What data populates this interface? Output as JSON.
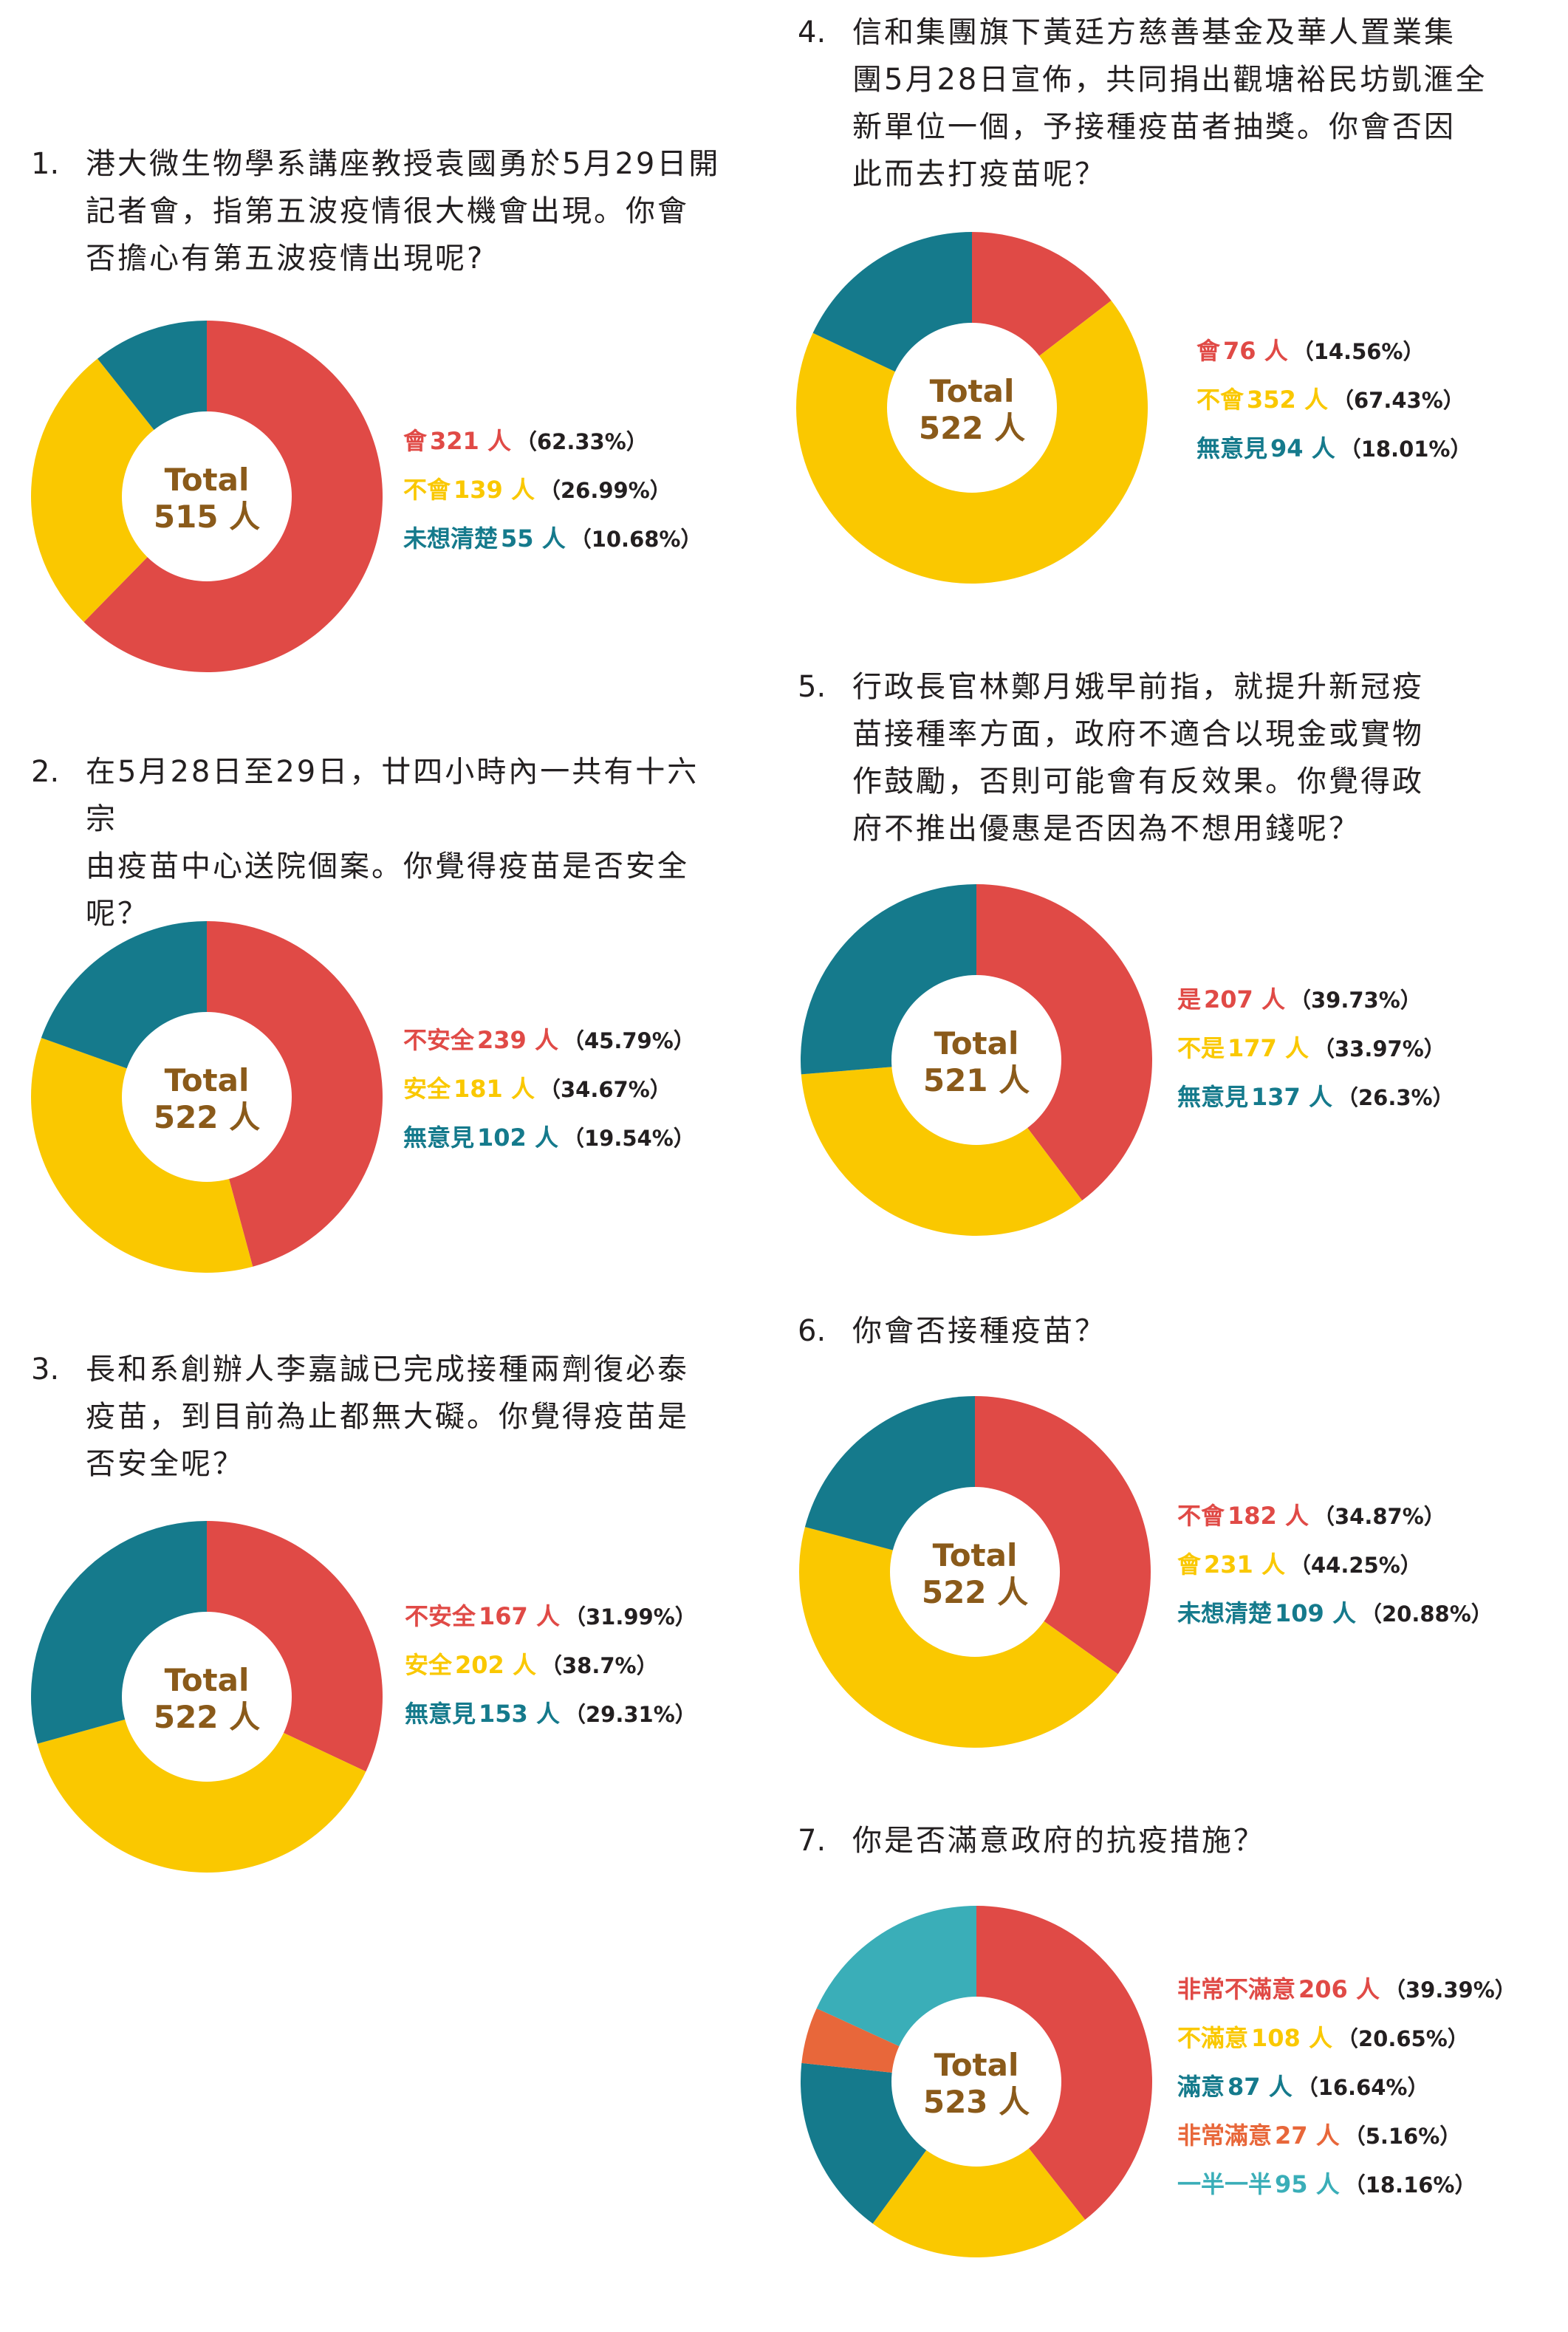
{
  "colors": {
    "red": "#e04a46",
    "yellow": "#fac800",
    "teal": "#157a8c",
    "orange": "#e8673a",
    "cyan": "#3aaeb8",
    "center_text": "#8a5a1a"
  },
  "chart_data": [
    {
      "type": "pie",
      "number": "1.",
      "question": "港大微生物學系講座教授袁國勇於5月29日開記者會，指第五波疫情很大機會出現。你會否擔心有第五波疫情出現呢?",
      "question_lines": [
        "港大微生物學系講座教授袁國勇於5月29日開",
        "記者會，指第五波疫情很大機會出現。你會",
        "否擔心有第五波疫情出現呢?"
      ],
      "center_label": "Total",
      "center_value": "515 人",
      "slices": [
        {
          "label": "會",
          "count": "321 人",
          "value": 62.33,
          "pct": "（62.33%）",
          "color": "#e04a46"
        },
        {
          "label": "不會",
          "count": "139 人",
          "value": 26.99,
          "pct": "（26.99%）",
          "color": "#fac800"
        },
        {
          "label": "未想清楚",
          "count": "55 人",
          "value": 10.68,
          "pct": "（10.68%）",
          "color": "#157a8c"
        }
      ]
    },
    {
      "type": "pie",
      "number": "2.",
      "question": "在5月28日至29日，廿四小時內一共有十六宗由疫苗中心送院個案。你覺得疫苗是否安全呢？",
      "question_lines": [
        "在5月28日至29日，廿四小時內一共有十六宗",
        "由疫苗中心送院個案。你覺得疫苗是否安全",
        "呢？"
      ],
      "center_label": "Total",
      "center_value": "522 人",
      "slices": [
        {
          "label": "不安全",
          "count": "239 人",
          "value": 45.79,
          "pct": "（45.79%）",
          "color": "#e04a46"
        },
        {
          "label": "安全",
          "count": "181 人",
          "value": 34.67,
          "pct": "（34.67%）",
          "color": "#fac800"
        },
        {
          "label": "無意見",
          "count": "102 人",
          "value": 19.54,
          "pct": "（19.54%）",
          "color": "#157a8c"
        }
      ]
    },
    {
      "type": "pie",
      "number": "3.",
      "question": "長和系創辦人李嘉誠已完成接種兩劑復必泰疫苗，到目前為止都無大礙。你覺得疫苗是否安全呢？",
      "question_lines": [
        "長和系創辦人李嘉誠已完成接種兩劑復必泰",
        "疫苗，到目前為止都無大礙。你覺得疫苗是",
        "否安全呢？"
      ],
      "center_label": "Total",
      "center_value": "522 人",
      "slices": [
        {
          "label": "不安全",
          "count": "167 人",
          "value": 31.99,
          "pct": "（31.99%）",
          "color": "#e04a46"
        },
        {
          "label": "安全",
          "count": "202 人",
          "value": 38.7,
          "pct": "（38.7%）",
          "color": "#fac800"
        },
        {
          "label": "無意見",
          "count": "153 人",
          "value": 29.31,
          "pct": "（29.31%）",
          "color": "#157a8c"
        }
      ]
    },
    {
      "type": "pie",
      "number": "4.",
      "question": "信和集團旗下黃廷方慈善基金及華人置業集團5月28日宣佈，共同捐出觀塘裕民坊凱滙全新單位一個，予接種疫苗者抽獎。你會否因此而去打疫苗呢？",
      "question_lines": [
        "信和集團旗下黃廷方慈善基金及華人置業集",
        "團5月28日宣佈，共同捐出觀塘裕民坊凱滙全",
        "新單位一個，予接種疫苗者抽獎。你會否因",
        "此而去打疫苗呢？"
      ],
      "center_label": "Total",
      "center_value": "522 人",
      "slices": [
        {
          "label": "會",
          "count": "76 人",
          "value": 14.56,
          "pct": "（14.56%）",
          "color": "#e04a46"
        },
        {
          "label": "不會",
          "count": "352 人",
          "value": 67.43,
          "pct": "（67.43%）",
          "color": "#fac800"
        },
        {
          "label": "無意見",
          "count": "94 人",
          "value": 18.01,
          "pct": "（18.01%）",
          "color": "#157a8c"
        }
      ]
    },
    {
      "type": "pie",
      "number": "5.",
      "question": "行政長官林鄭月娥早前指，就提升新冠疫苗接種率方面，政府不適合以現金或實物作鼓勵，否則可能會有反效果。你覺得政府不推出優惠是否因為不想用錢呢？",
      "question_lines": [
        "行政長官林鄭月娥早前指，就提升新冠疫",
        "苗接種率方面，政府不適合以現金或實物",
        "作鼓勵，否則可能會有反效果。你覺得政",
        "府不推出優惠是否因為不想用錢呢？"
      ],
      "center_label": "Total",
      "center_value": "521 人",
      "slices": [
        {
          "label": "是",
          "count": "207 人",
          "value": 39.73,
          "pct": "（39.73%）",
          "color": "#e04a46"
        },
        {
          "label": "不是",
          "count": "177 人",
          "value": 33.97,
          "pct": "（33.97%）",
          "color": "#fac800"
        },
        {
          "label": "無意見",
          "count": "137 人",
          "value": 26.3,
          "pct": "（26.3%）",
          "color": "#157a8c"
        }
      ]
    },
    {
      "type": "pie",
      "number": "6.",
      "question": "你會否接種疫苗？",
      "question_lines": [
        "你會否接種疫苗？"
      ],
      "center_label": "Total",
      "center_value": "522 人",
      "slices": [
        {
          "label": "不會",
          "count": "182 人",
          "value": 34.87,
          "pct": "（34.87%）",
          "color": "#e04a46"
        },
        {
          "label": "會",
          "count": "231 人",
          "value": 44.25,
          "pct": "（44.25%）",
          "color": "#fac800"
        },
        {
          "label": "未想清楚",
          "count": "109 人",
          "value": 20.88,
          "pct": "（20.88%）",
          "color": "#157a8c"
        }
      ]
    },
    {
      "type": "pie",
      "number": "7.",
      "question": "你是否滿意政府的抗疫措施？",
      "question_lines": [
        "你是否滿意政府的抗疫措施？"
      ],
      "center_label": "Total",
      "center_value": "523 人",
      "slices": [
        {
          "label": "非常不滿意",
          "count": "206 人",
          "value": 39.39,
          "pct": "（39.39%）",
          "color": "#e04a46"
        },
        {
          "label": "不滿意",
          "count": "108 人",
          "value": 20.65,
          "pct": "（20.65%）",
          "color": "#fac800"
        },
        {
          "label": "滿意",
          "count": "87 人",
          "value": 16.64,
          "pct": "（16.64%）",
          "color": "#157a8c"
        },
        {
          "label": "非常滿意",
          "count": "27 人",
          "value": 5.16,
          "pct": "（5.16%）",
          "color": "#e8673a"
        },
        {
          "label": "一半一半",
          "count": "95 人",
          "value": 18.16,
          "pct": "（18.16%）",
          "color": "#3aaeb8"
        }
      ]
    }
  ]
}
